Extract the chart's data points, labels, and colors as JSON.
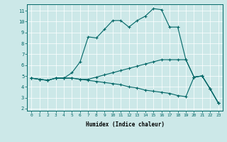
{
  "xlabel": "Humidex (Indice chaleur)",
  "bg_color": "#cce8e8",
  "grid_color": "#ffffff",
  "line_color": "#006666",
  "xlim": [
    -0.5,
    23.5
  ],
  "ylim": [
    1.8,
    11.6
  ],
  "xticks": [
    0,
    1,
    2,
    3,
    4,
    5,
    6,
    7,
    8,
    9,
    10,
    11,
    12,
    13,
    14,
    15,
    16,
    17,
    18,
    19,
    20,
    21,
    22,
    23
  ],
  "yticks": [
    2,
    3,
    4,
    5,
    6,
    7,
    8,
    9,
    10,
    11
  ],
  "series": [
    [
      4.8,
      4.7,
      4.6,
      4.8,
      4.8,
      5.3,
      6.3,
      8.6,
      8.5,
      9.3,
      10.1,
      10.1,
      9.5,
      10.1,
      10.5,
      11.2,
      11.1,
      9.5,
      9.5,
      6.5,
      4.9,
      5.0,
      3.8,
      2.5
    ],
    [
      4.8,
      4.7,
      4.6,
      4.8,
      4.8,
      4.8,
      4.7,
      4.7,
      4.9,
      5.1,
      5.3,
      5.5,
      5.7,
      5.9,
      6.1,
      6.3,
      6.5,
      6.5,
      6.5,
      6.5,
      4.9,
      5.0,
      3.8,
      2.5
    ],
    [
      4.8,
      4.7,
      4.6,
      4.8,
      4.8,
      4.8,
      4.7,
      4.6,
      4.5,
      4.4,
      4.3,
      4.2,
      4.0,
      3.9,
      3.7,
      3.6,
      3.5,
      3.4,
      3.2,
      3.1,
      4.9,
      5.0,
      3.8,
      2.5
    ]
  ]
}
